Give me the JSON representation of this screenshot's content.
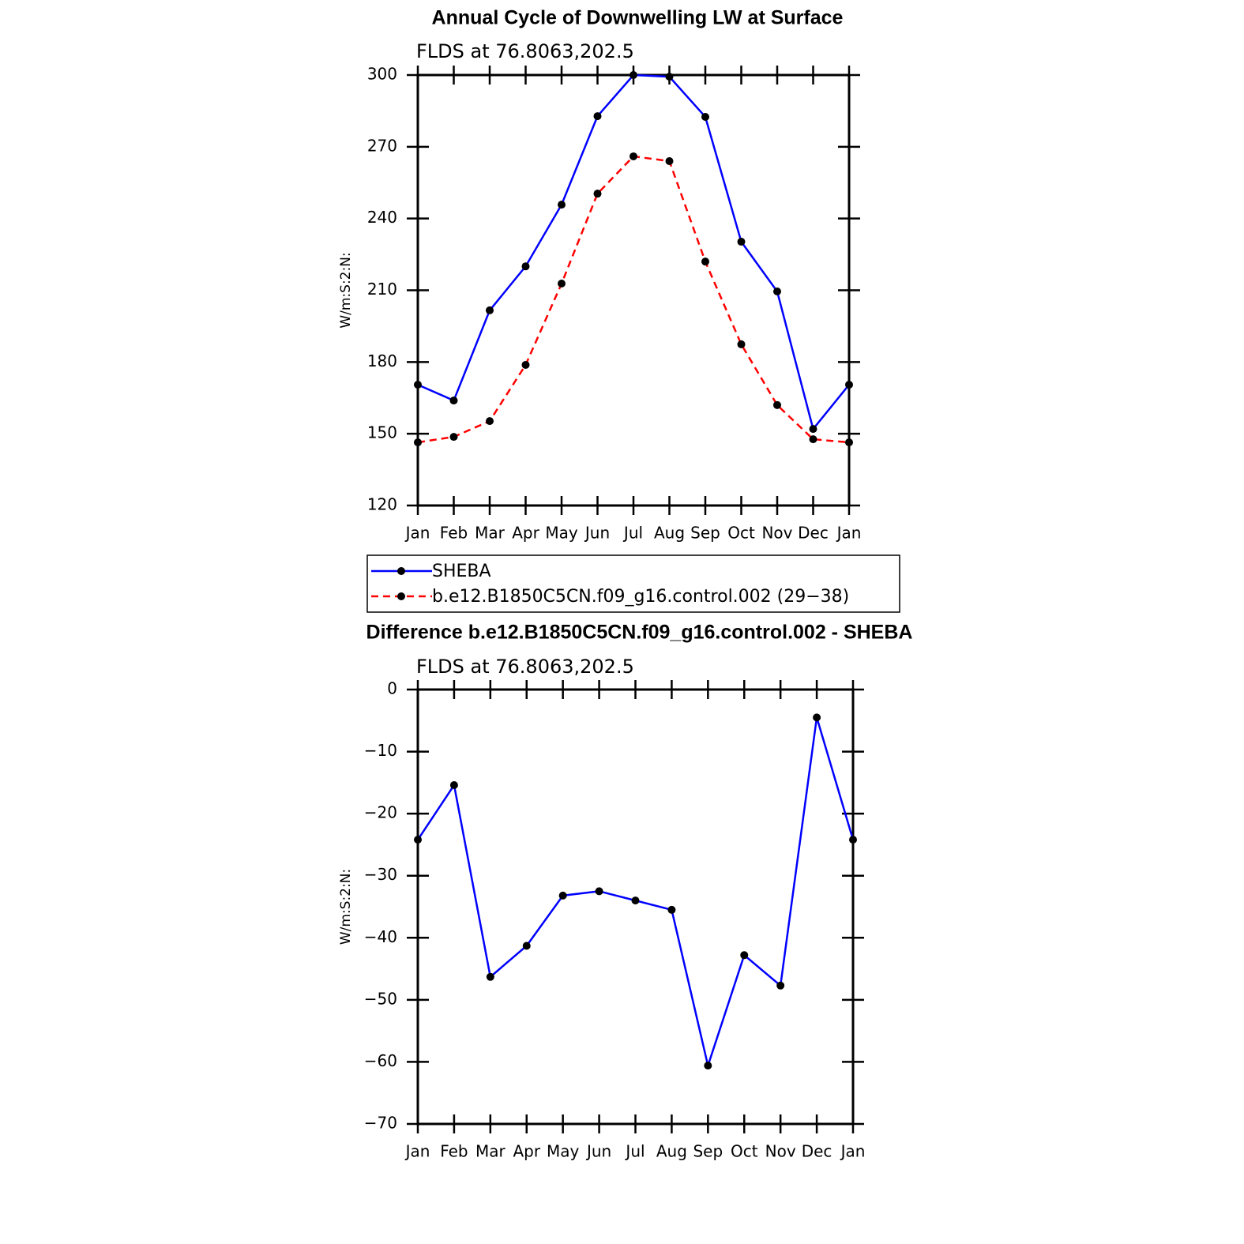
{
  "chart_data": [
    {
      "type": "line",
      "title": "Annual Cycle of Downwelling LW at Surface",
      "subtitle": "FLDS at 76.8063,202.5",
      "y_label": "W/m:S:2:N:",
      "categories": [
        "Jan",
        "Feb",
        "Mar",
        "Apr",
        "May",
        "Jun",
        "Jul",
        "Aug",
        "Sep",
        "Oct",
        "Nov",
        "Dec",
        "Jan"
      ],
      "series": [
        {
          "name": "SHEBA",
          "color": "#0000ff",
          "linestyle": "solid",
          "values": [
            170.5,
            163.9,
            201.6,
            220,
            245.8,
            282.8,
            300,
            299.3,
            282.5,
            230.3,
            209.5,
            152,
            170.5
          ]
        },
        {
          "name": "b.e12.B1850C5CN.f09_g16.control.002 (29−38)",
          "color": "#ff0000",
          "linestyle": "dashed",
          "values": [
            146.4,
            148.7,
            155.3,
            178.8,
            212.8,
            250.4,
            266,
            264,
            222,
            187.4,
            162,
            147.7,
            146.4
          ]
        }
      ],
      "ylim": [
        120,
        300
      ],
      "yticks": [
        120,
        150,
        180,
        210,
        240,
        270,
        300
      ],
      "legend": "bottom"
    },
    {
      "type": "line",
      "title": "Difference b.e12.B1850C5CN.f09_g16.control.002 - SHEBA",
      "subtitle": "FLDS at 76.8063,202.5",
      "y_label": "W/m:S:2:N:",
      "categories": [
        "Jan",
        "Feb",
        "Mar",
        "Apr",
        "May",
        "Jun",
        "Jul",
        "Aug",
        "Sep",
        "Oct",
        "Nov",
        "Dec",
        "Jan"
      ],
      "series": [
        {
          "color": "#0000ff",
          "linestyle": "solid",
          "values": [
            -24.2,
            -15.4,
            -46.3,
            -41.3,
            -33.2,
            -32.5,
            -34,
            -35.5,
            -60.6,
            -42.8,
            -47.7,
            -4.5,
            -24.2
          ]
        }
      ],
      "ylim": [
        -70,
        0
      ],
      "yticks": [
        {
          "value": -70,
          "label": "−70"
        },
        {
          "value": -60,
          "label": "−60"
        },
        {
          "value": -50,
          "label": "−50"
        },
        {
          "value": -40,
          "label": "−40"
        },
        {
          "value": -30,
          "label": "−30"
        },
        {
          "value": -20,
          "label": "−20"
        },
        {
          "value": -10,
          "label": "−10"
        },
        0
      ]
    }
  ]
}
